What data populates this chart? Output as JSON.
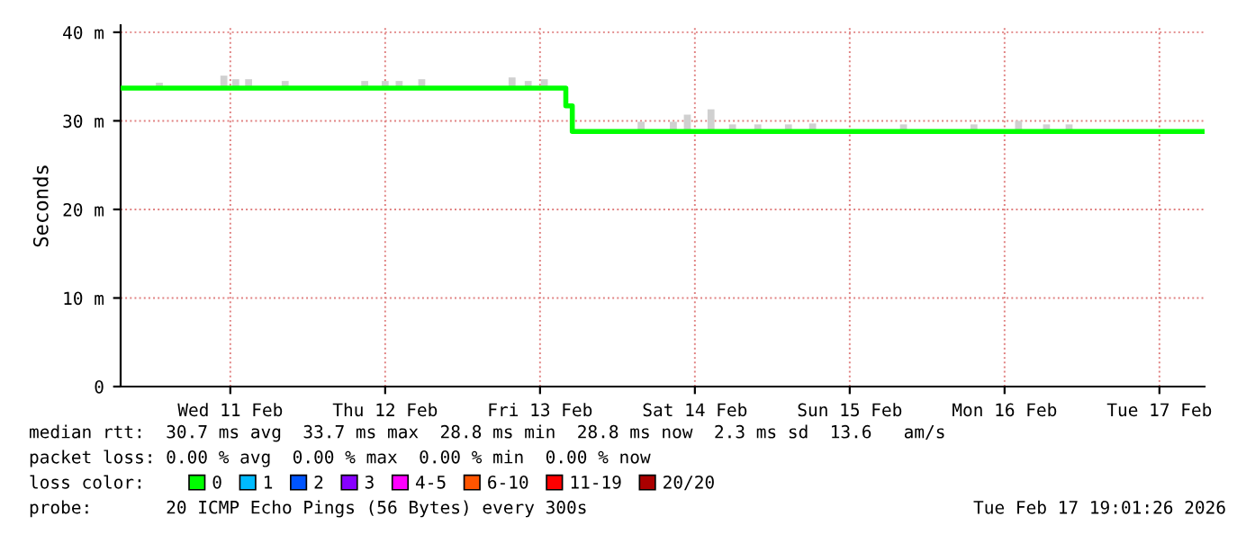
{
  "chart_data": {
    "type": "step",
    "ylabel": "Seconds",
    "legend_title": "loss color:",
    "legend": "bottom",
    "grid": true,
    "xlim": [
      "2026-02-10T19:00",
      "2026-02-17T19:00"
    ],
    "xticks": [
      {
        "value": "2026-02-11T12:00",
        "label": "Wed 11 Feb"
      },
      {
        "value": "2026-02-12T12:00",
        "label": "Thu 12 Feb"
      },
      {
        "value": "2026-02-13T12:00",
        "label": "Fri 13 Feb"
      },
      {
        "value": "2026-02-14T12:00",
        "label": "Sat 14 Feb"
      },
      {
        "value": "2026-02-15T12:00",
        "label": "Sun 15 Feb"
      },
      {
        "value": "2026-02-16T12:00",
        "label": "Mon 16 Feb"
      },
      {
        "value": "2026-02-17T12:00",
        "label": "Tue 17 Feb"
      }
    ],
    "ylim": [
      0,
      40.8
    ],
    "yticks": [
      0,
      {
        "value": 10,
        "label": "10 m"
      },
      {
        "value": 20,
        "label": "20 m"
      },
      {
        "value": 30,
        "label": "30 m"
      },
      {
        "value": 40,
        "label": "40 m"
      }
    ],
    "series": [
      {
        "type": "bar",
        "color": "#d0d0d0",
        "x": [
          "2026-02-11T01:00",
          "2026-02-11T11:00",
          "2026-02-11T12:50",
          "2026-02-11T14:50",
          "2026-02-11T20:30",
          "2026-02-12T08:50",
          "2026-02-12T12:00",
          "2026-02-12T14:10",
          "2026-02-12T17:40",
          "2026-02-13T07:40",
          "2026-02-13T10:10",
          "2026-02-13T12:40",
          "2026-02-14T03:40",
          "2026-02-14T08:40",
          "2026-02-14T10:50",
          "2026-02-14T14:30",
          "2026-02-14T17:50",
          "2026-02-14T21:45",
          "2026-02-15T02:30",
          "2026-02-15T06:15",
          "2026-02-15T20:20",
          "2026-02-16T07:15",
          "2026-02-16T14:10",
          "2026-02-16T18:30",
          "2026-02-16T22:00"
        ],
        "base": [
          33.7,
          33.7,
          33.7,
          33.7,
          33.7,
          33.7,
          33.7,
          33.7,
          33.7,
          33.7,
          33.7,
          33.7,
          28.8,
          28.8,
          28.8,
          28.8,
          28.8,
          28.8,
          28.8,
          28.8,
          28.8,
          28.8,
          28.8,
          28.8,
          28.8
        ],
        "values": [
          0.6,
          1.4,
          1.0,
          1.0,
          0.8,
          0.8,
          0.8,
          0.8,
          1.0,
          1.2,
          0.8,
          1.0,
          1.1,
          1.1,
          1.9,
          2.5,
          0.8,
          0.8,
          0.8,
          0.9,
          0.8,
          0.8,
          1.2,
          0.8,
          0.8
        ]
      },
      {
        "name": "0",
        "color": "#00ff00",
        "x": [
          "2026-02-10T19:00",
          "2026-02-13T16:00",
          "2026-02-13T17:00",
          "2026-02-17T19:00"
        ],
        "values": [
          33.7,
          31.7,
          28.8,
          28.8
        ]
      },
      {
        "name": "1",
        "color": "#00bbff",
        "type": "line"
      },
      {
        "name": "2",
        "color": "#0055ff",
        "type": "line"
      },
      {
        "name": "3",
        "color": "#8800ff",
        "type": "line"
      },
      {
        "name": "4-5",
        "color": "#ff00ff",
        "type": "line"
      },
      {
        "name": "6-10",
        "color": "#ff5500",
        "type": "line"
      },
      {
        "name": "11-19",
        "color": "#ff0000",
        "type": "line"
      },
      {
        "name": "20/20",
        "color": "#aa0000",
        "type": "line"
      }
    ],
    "annotations": [
      "median rtt:  30.7 ms avg  33.7 ms max  28.8 ms min  28.8 ms now  2.3 ms sd  13.6   am/s",
      "packet loss: 0.00 % avg  0.00 % max  0.00 % min  0.00 % now",
      "probe:       20 ICMP Echo Pings (56 Bytes) every 300s",
      "Tue Feb 17 19:01:26 2026"
    ]
  }
}
